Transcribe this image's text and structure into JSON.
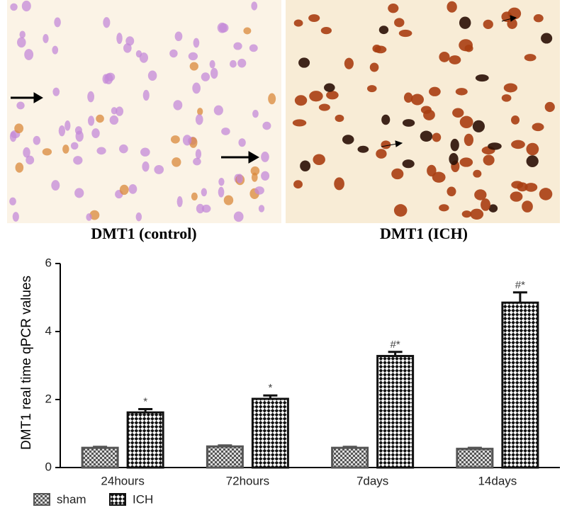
{
  "panels": [
    {
      "caption": "DMT1 (control)"
    },
    {
      "caption": "DMT1 (ICH)"
    }
  ],
  "chart_data": {
    "type": "bar",
    "ylabel": "DMT1 real time qPCR values",
    "categories": [
      "24hours",
      "72hours",
      "7days",
      "14days"
    ],
    "series": [
      {
        "name": "sham",
        "color": "#555555",
        "values": [
          0.58,
          0.62,
          0.58,
          0.55
        ],
        "errors": [
          0.03,
          0.03,
          0.03,
          0.03
        ]
      },
      {
        "name": "ICH",
        "color": "#111111",
        "values": [
          1.62,
          2.02,
          3.28,
          4.85
        ],
        "errors": [
          0.1,
          0.1,
          0.12,
          0.3
        ],
        "annotations": [
          "*",
          "*",
          "#*",
          "#*"
        ]
      }
    ],
    "ylim": [
      0,
      6
    ],
    "yticks": [
      0,
      2,
      4,
      6
    ],
    "legend": "bottom-left"
  }
}
